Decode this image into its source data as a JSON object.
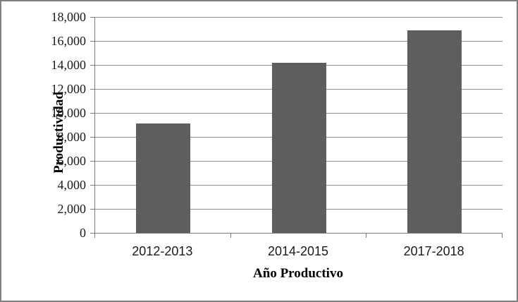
{
  "chart_data": {
    "type": "bar",
    "categories": [
      "2012-2013",
      "2014-2015",
      "2017-2018"
    ],
    "values": [
      9100,
      14200,
      16900
    ],
    "title": "",
    "xlabel": "Año Productivo",
    "ylabel": "Productividad",
    "ylim": [
      0,
      18000
    ],
    "ytick_step": 2000,
    "ytick_labels": [
      "0",
      "2,000",
      "4,000",
      "6,000",
      "8,000",
      "10,000",
      "12,000",
      "14,000",
      "16,000",
      "18,000"
    ],
    "grid": true,
    "legend": false,
    "bar_color": "#5e5e5e"
  },
  "colors": {
    "frame_border": "#808080",
    "axis_line": "#7a7a7a",
    "gridline": "#8e8e8e",
    "bar_fill": "#5e5e5e",
    "text": "#1a1a1a",
    "background": "#ffffff"
  }
}
